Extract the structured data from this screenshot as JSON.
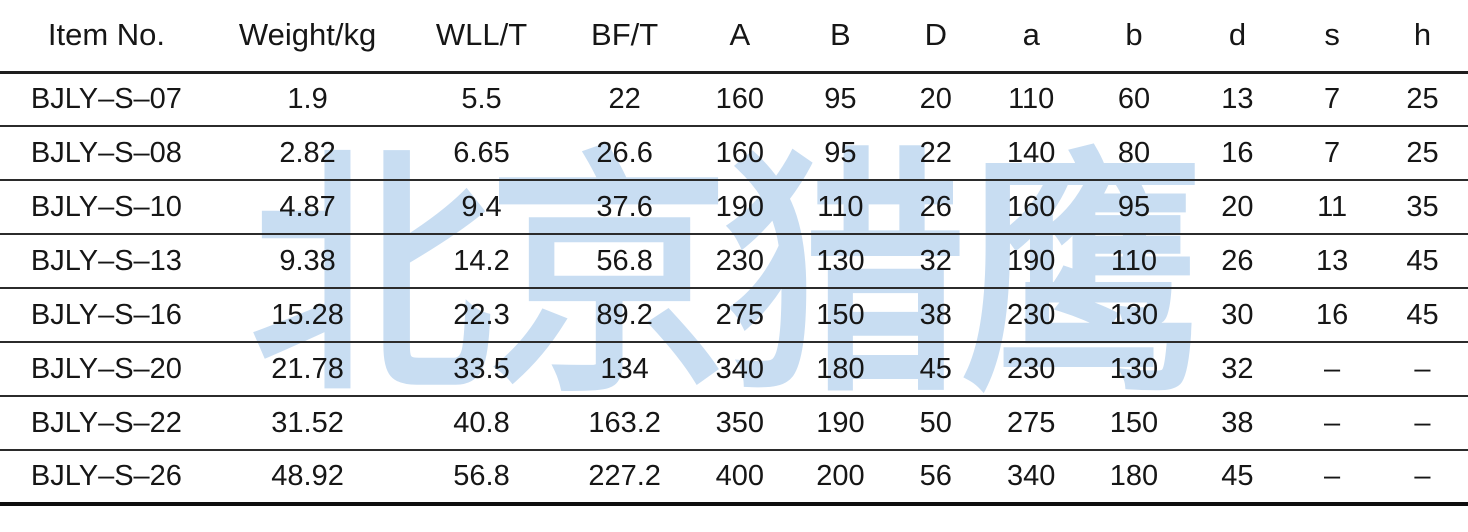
{
  "watermark": {
    "text": "北京猎鹰",
    "color": "#c8ddf2"
  },
  "table": {
    "columns": [
      {
        "label": "Item No."
      },
      {
        "label": "Weight/kg"
      },
      {
        "label": "WLL/T"
      },
      {
        "label": "BF/T"
      },
      {
        "label": "A"
      },
      {
        "label": "B"
      },
      {
        "label": "D"
      },
      {
        "label": "a"
      },
      {
        "label": "b"
      },
      {
        "label": "d"
      },
      {
        "label": "s"
      },
      {
        "label": "h"
      }
    ],
    "rows": [
      [
        "BJLY–S–07",
        "1.9",
        "5.5",
        "22",
        "160",
        "95",
        "20",
        "110",
        "60",
        "13",
        "7",
        "25"
      ],
      [
        "BJLY–S–08",
        "2.82",
        "6.65",
        "26.6",
        "160",
        "95",
        "22",
        "140",
        "80",
        "16",
        "7",
        "25"
      ],
      [
        "BJLY–S–10",
        "4.87",
        "9.4",
        "37.6",
        "190",
        "110",
        "26",
        "160",
        "95",
        "20",
        "11",
        "35"
      ],
      [
        "BJLY–S–13",
        "9.38",
        "14.2",
        "56.8",
        "230",
        "130",
        "32",
        "190",
        "110",
        "26",
        "13",
        "45"
      ],
      [
        "BJLY–S–16",
        "15.28",
        "22.3",
        "89.2",
        "275",
        "150",
        "38",
        "230",
        "130",
        "30",
        "16",
        "45"
      ],
      [
        "BJLY–S–20",
        "21.78",
        "33.5",
        "134",
        "340",
        "180",
        "45",
        "230",
        "130",
        "32",
        "–",
        "–"
      ],
      [
        "BJLY–S–22",
        "31.52",
        "40.8",
        "163.2",
        "350",
        "190",
        "50",
        "275",
        "150",
        "38",
        "–",
        "–"
      ],
      [
        "BJLY–S–26",
        "48.92",
        "56.8",
        "227.2",
        "400",
        "200",
        "56",
        "340",
        "180",
        "45",
        "–",
        "–"
      ]
    ]
  }
}
